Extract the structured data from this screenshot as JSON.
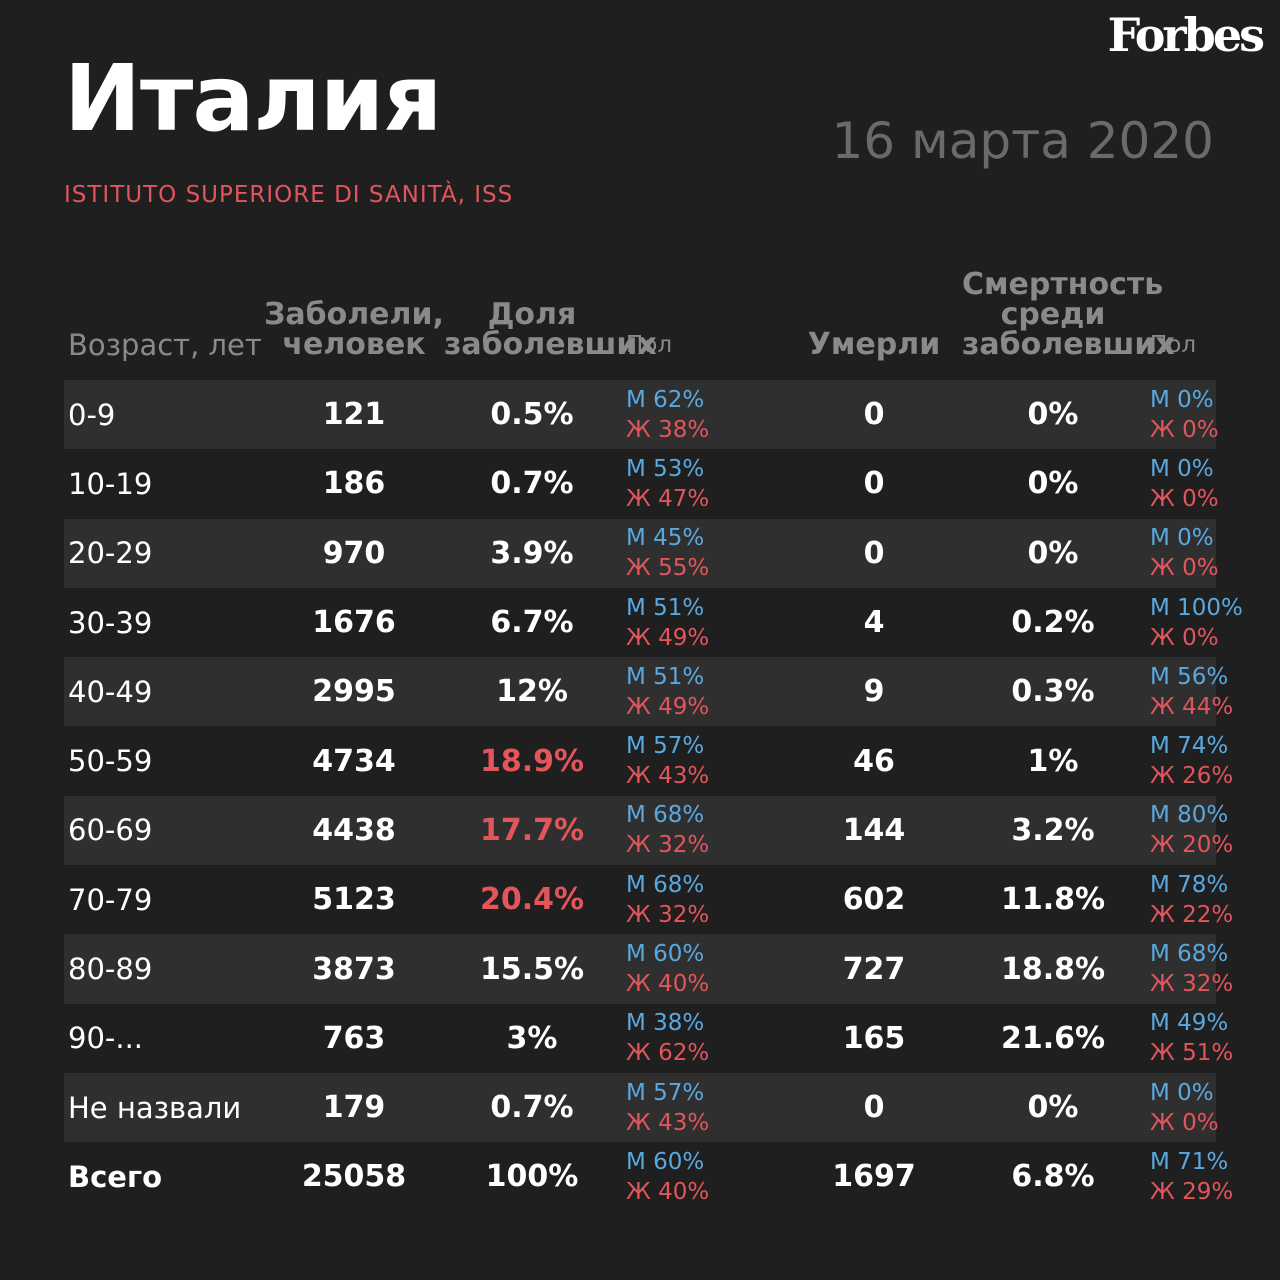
{
  "brand": "Forbes",
  "title": "Италия",
  "date": "16 марта 2020",
  "source": "ISTITUTO SUPERIORE DI SANITÀ, ISS",
  "colors": {
    "accent_red": "#e2555b",
    "male_blue": "#5aa8e0",
    "background": "#1f1f1f",
    "row_shade": "#2f2f2f"
  },
  "headers": {
    "age": "Возраст, лет",
    "cases": "Заболели, человек",
    "share": "Доля заболевших",
    "sex": "Пол",
    "deaths": "Умерли",
    "mortality": "Смертность среди заболевших",
    "sex_deaths": "Пол"
  },
  "rows": [
    {
      "age": "0-9",
      "cases": "121",
      "share": "0.5%",
      "sex_m": "М 62%",
      "sex_f": "Ж 38%",
      "deaths": "0",
      "mortality": "0%",
      "dsex_m": "М 0%",
      "dsex_f": "Ж 0%"
    },
    {
      "age": "10-19",
      "cases": "186",
      "share": "0.7%",
      "sex_m": "М 53%",
      "sex_f": "Ж 47%",
      "deaths": "0",
      "mortality": "0%",
      "dsex_m": "М 0%",
      "dsex_f": "Ж 0%"
    },
    {
      "age": "20-29",
      "cases": "970",
      "share": "3.9%",
      "sex_m": "М 45%",
      "sex_f": "Ж 55%",
      "deaths": "0",
      "mortality": "0%",
      "dsex_m": "М 0%",
      "dsex_f": "Ж 0%"
    },
    {
      "age": "30-39",
      "cases": "1676",
      "share": "6.7%",
      "sex_m": "М 51%",
      "sex_f": "Ж 49%",
      "deaths": "4",
      "mortality": "0.2%",
      "dsex_m": "М 100%",
      "dsex_f": "Ж 0%"
    },
    {
      "age": "40-49",
      "cases": "2995",
      "share": "12%",
      "sex_m": "М 51%",
      "sex_f": "Ж 49%",
      "deaths": "9",
      "mortality": "0.3%",
      "dsex_m": "М 56%",
      "dsex_f": "Ж 44%"
    },
    {
      "age": "50-59",
      "cases": "4734",
      "share": "18.9%",
      "sex_m": "М 57%",
      "sex_f": "Ж 43%",
      "deaths": "46",
      "mortality": "1%",
      "dsex_m": "М 74%",
      "dsex_f": "Ж 26%"
    },
    {
      "age": "60-69",
      "cases": "4438",
      "share": "17.7%",
      "sex_m": "М 68%",
      "sex_f": "Ж 32%",
      "deaths": "144",
      "mortality": "3.2%",
      "dsex_m": "М 80%",
      "dsex_f": "Ж 20%"
    },
    {
      "age": "70-79",
      "cases": "5123",
      "share": "20.4%",
      "sex_m": "М 68%",
      "sex_f": "Ж 32%",
      "deaths": "602",
      "mortality": "11.8%",
      "dsex_m": "М 78%",
      "dsex_f": "Ж 22%"
    },
    {
      "age": "80-89",
      "cases": "3873",
      "share": "15.5%",
      "sex_m": "М 60%",
      "sex_f": "Ж 40%",
      "deaths": "727",
      "mortality": "18.8%",
      "dsex_m": "М 68%",
      "dsex_f": "Ж 32%"
    },
    {
      "age": "90-...",
      "cases": "763",
      "share": "3%",
      "sex_m": "М 38%",
      "sex_f": "Ж 62%",
      "deaths": "165",
      "mortality": "21.6%",
      "dsex_m": "М 49%",
      "dsex_f": "Ж 51%"
    },
    {
      "age": "Не назвали",
      "cases": "179",
      "share": "0.7%",
      "sex_m": "М 57%",
      "sex_f": "Ж 43%",
      "deaths": "0",
      "mortality": "0%",
      "dsex_m": "М 0%",
      "dsex_f": "Ж 0%"
    },
    {
      "age": "Всего",
      "cases": "25058",
      "share": "100%",
      "sex_m": "М 60%",
      "sex_f": "Ж 40%",
      "deaths": "1697",
      "mortality": "6.8%",
      "dsex_m": "М 71%",
      "dsex_f": "Ж 29%"
    }
  ]
}
